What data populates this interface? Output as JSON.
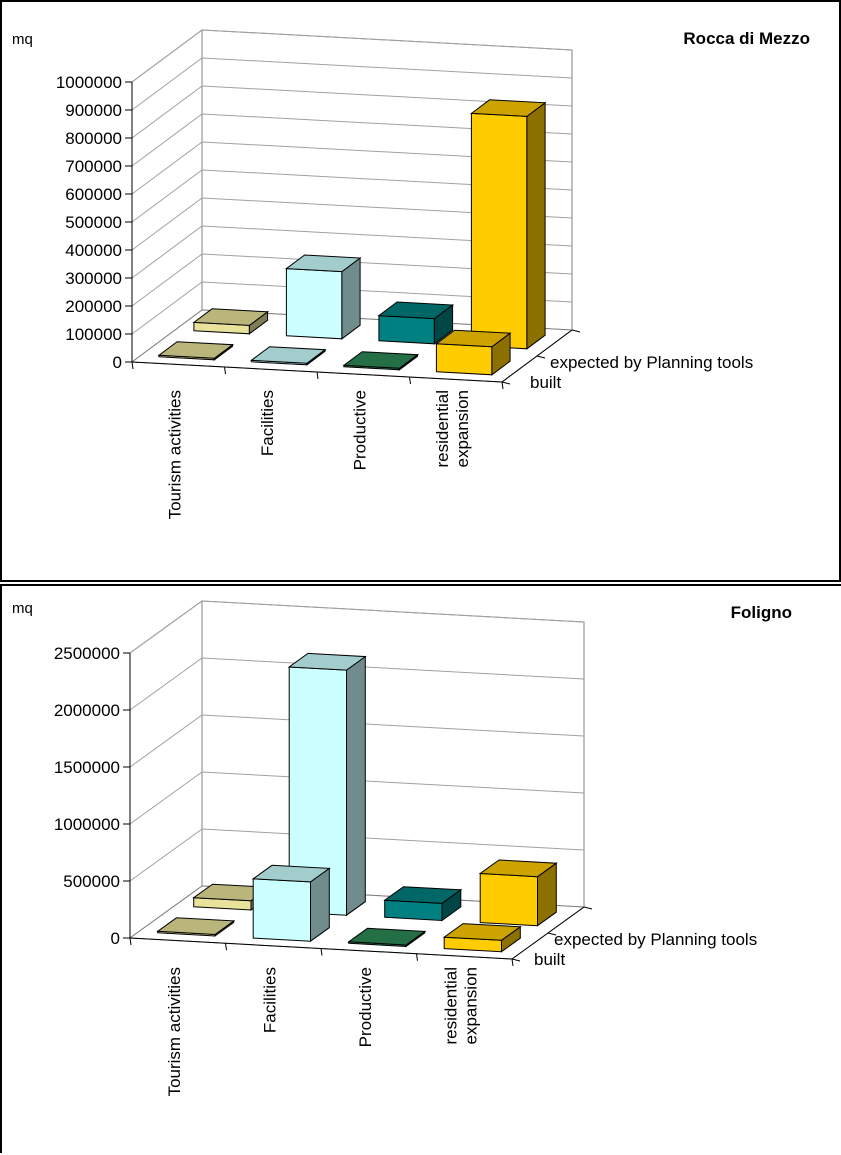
{
  "chart_data": [
    {
      "type": "bar",
      "title": "Rocca di Mezzo",
      "ylabel": "mq",
      "ylim": [
        0,
        1000000
      ],
      "yticks": [
        0,
        100000,
        200000,
        300000,
        400000,
        500000,
        600000,
        700000,
        800000,
        900000,
        1000000
      ],
      "categories": [
        "Tourism activities",
        "Facilities",
        "Productive",
        "residential expansion"
      ],
      "series": [
        {
          "name": "built",
          "values": [
            5000,
            5000,
            5000,
            100000
          ]
        },
        {
          "name": "expected by Planning tools",
          "values": [
            30000,
            240000,
            90000,
            830000
          ]
        }
      ],
      "grid": true,
      "colors": {
        "tourism": "#e8e29a",
        "facilities": "#ccffff",
        "productive_built": "#2e8b57",
        "productive_expected": "#008080",
        "residential": "#ffcc00"
      }
    },
    {
      "type": "bar",
      "title": "Foligno",
      "ylabel": "mq",
      "ylim": [
        0,
        2500000
      ],
      "yticks": [
        0,
        500000,
        1000000,
        1500000,
        2000000,
        2500000
      ],
      "categories": [
        "Tourism activities",
        "Facilities",
        "Productive",
        "residential expansion"
      ],
      "series": [
        {
          "name": "built",
          "values": [
            10000,
            520000,
            10000,
            100000
          ]
        },
        {
          "name": "expected by Planning tools",
          "values": [
            80000,
            2150000,
            150000,
            430000
          ]
        }
      ],
      "grid": true,
      "colors": {
        "tourism": "#e8e29a",
        "facilities": "#ccffff",
        "productive_built": "#2e8b57",
        "productive_expected": "#008080",
        "residential": "#ffcc00"
      }
    }
  ]
}
